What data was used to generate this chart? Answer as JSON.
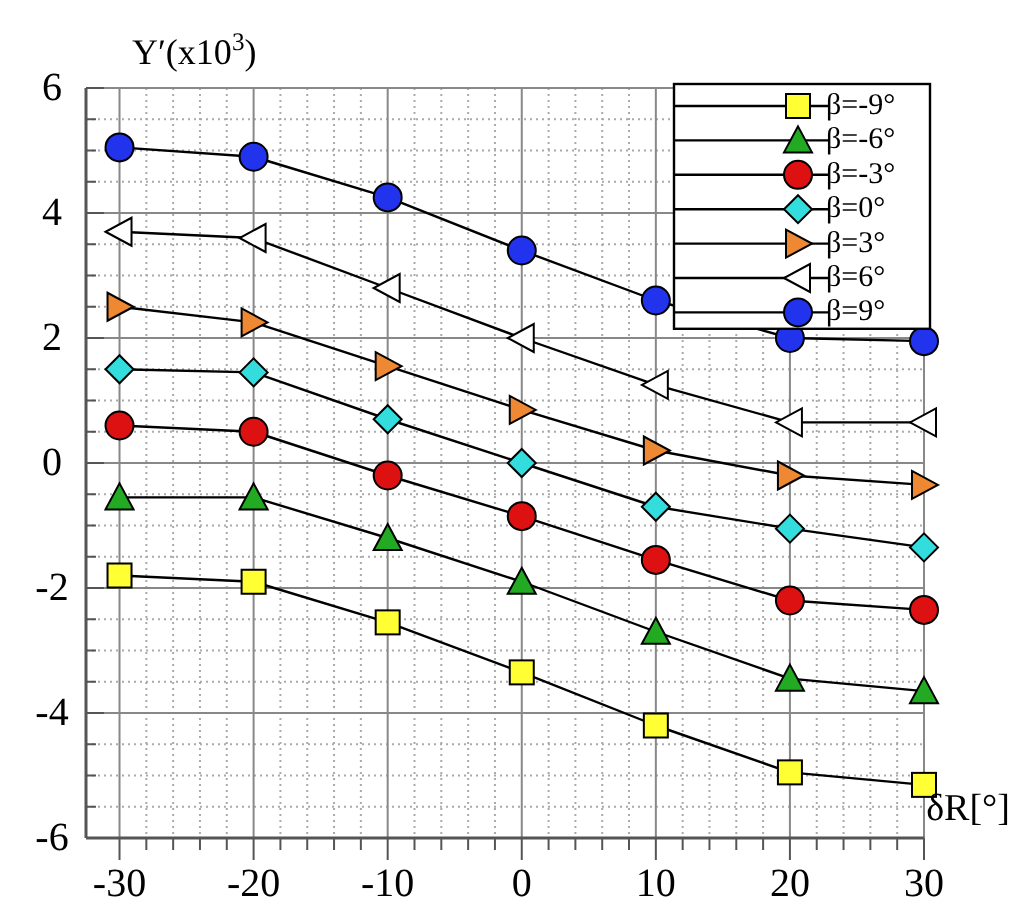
{
  "chart_data": {
    "type": "line",
    "xlabel": "δR[°]",
    "ylabel": "Y′(x10$^{3}$)",
    "x": [
      -30,
      -20,
      -10,
      0,
      10,
      20,
      30
    ],
    "xlim": [
      -32.5,
      30
    ],
    "xticks": [
      -30,
      -20,
      -10,
      0,
      10,
      20,
      30
    ],
    "ylim": [
      -6,
      6
    ],
    "yticks": [
      -6,
      -4,
      -2,
      0,
      2,
      4,
      6
    ],
    "grid": true,
    "legend": "top right",
    "series": [
      {
        "name": "β=-9°",
        "color": "#ffff33",
        "marker": "square",
        "values": [
          -1.8,
          -1.9,
          -2.55,
          -3.35,
          -4.2,
          -4.95,
          -5.15
        ]
      },
      {
        "name": "β=-6°",
        "color": "#22aa22",
        "marker": "triangle",
        "values": [
          -0.55,
          -0.55,
          -1.2,
          -1.9,
          -2.7,
          -3.45,
          -3.65
        ]
      },
      {
        "name": "β=-3°",
        "color": "#dd1111",
        "marker": "circle",
        "values": [
          0.6,
          0.5,
          -0.2,
          -0.85,
          -1.55,
          -2.2,
          -2.35
        ]
      },
      {
        "name": "β=0°",
        "color": "#33dddd",
        "marker": "diamond",
        "values": [
          1.5,
          1.45,
          0.7,
          0,
          -0.7,
          -1.05,
          -1.35
        ]
      },
      {
        "name": "β=3°",
        "color": "#ee8833",
        "marker": "triangle-right",
        "values": [
          2.5,
          2.25,
          1.55,
          0.85,
          0.2,
          -0.2,
          -0.35
        ]
      },
      {
        "name": "β=6°",
        "color": "#ffffff",
        "marker": "triangle-left",
        "values": [
          3.7,
          3.6,
          2.8,
          2.0,
          1.25,
          0.65,
          0.65
        ]
      },
      {
        "name": "β=9°",
        "color": "#2233ee",
        "marker": "circle",
        "values": [
          5.05,
          4.9,
          4.25,
          3.4,
          2.6,
          2.0,
          1.95
        ]
      }
    ]
  }
}
